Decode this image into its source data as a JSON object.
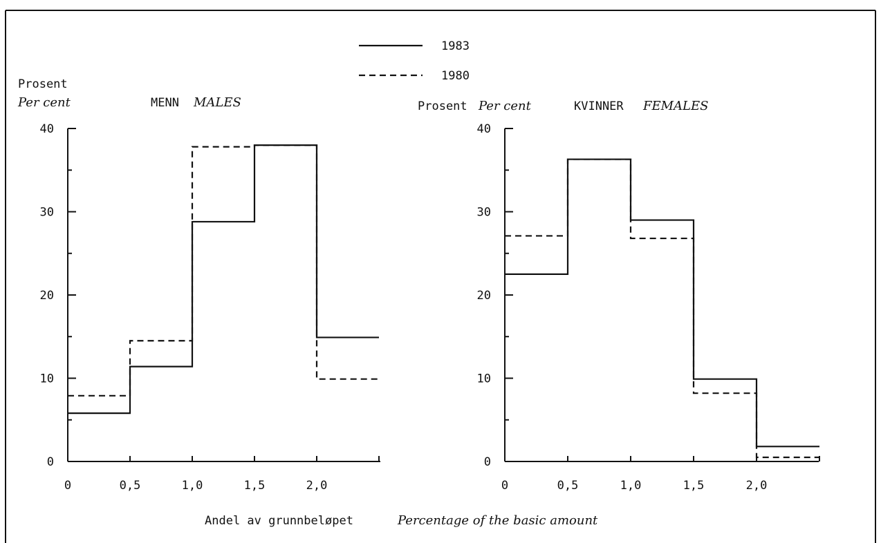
{
  "legend": {
    "items": [
      {
        "label": "1983",
        "style": "solid"
      },
      {
        "label": "1980",
        "style": "dashed"
      }
    ]
  },
  "footer": {
    "xlabel_norwegian": "Andel av grunnbeløpet",
    "xlabel_english": "Percentage of the basic amount"
  },
  "colors": {
    "line": "#111111",
    "background": "#ffffff"
  },
  "chart_data": [
    {
      "type": "line",
      "subtype": "step",
      "title": "MENN",
      "title_english": "MALES",
      "ylabel": "Prosent",
      "ylabel_english": "Per cent",
      "ylim": [
        0,
        40
      ],
      "y_ticks": [
        "0",
        "10",
        "20",
        "30",
        "40"
      ],
      "x_ticks": [
        "0",
        "0,5",
        "1,0",
        "1,5",
        "2,0"
      ],
      "x_bin_edges": [
        0,
        0.5,
        1.0,
        1.5,
        2.0,
        2.5
      ],
      "series": [
        {
          "name": "1983",
          "values": [
            5.8,
            11.4,
            28.8,
            38.0,
            14.9
          ]
        },
        {
          "name": "1980",
          "values": [
            7.9,
            14.5,
            37.8,
            38.0,
            9.9
          ]
        }
      ]
    },
    {
      "type": "line",
      "subtype": "step",
      "title": "KVINNER",
      "title_english": "FEMALES",
      "ylabel": "Prosent",
      "ylabel_english": "Per cent",
      "ylim": [
        0,
        40
      ],
      "y_ticks": [
        "0",
        "10",
        "20",
        "30",
        "40"
      ],
      "x_ticks": [
        "0",
        "0,5",
        "1,0",
        "1,5",
        "2,0"
      ],
      "x_bin_edges": [
        0,
        0.5,
        1.0,
        1.5,
        2.0,
        2.5
      ],
      "series": [
        {
          "name": "1983",
          "values": [
            22.5,
            36.3,
            29.0,
            9.9,
            1.8
          ]
        },
        {
          "name": "1980",
          "values": [
            27.1,
            36.3,
            26.8,
            8.2,
            0.5
          ]
        }
      ]
    }
  ]
}
